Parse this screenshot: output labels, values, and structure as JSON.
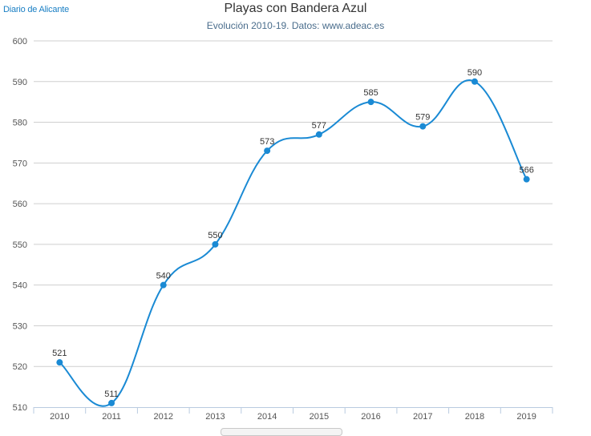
{
  "brand": "Diario de Alicante",
  "chart_data": {
    "type": "line",
    "title": "Playas con Bandera Azul",
    "subtitle": "Evolución 2010-19. Datos: www.adeac.es",
    "xlabel": "",
    "ylabel": "",
    "categories": [
      "2010",
      "2011",
      "2012",
      "2013",
      "2014",
      "2015",
      "2016",
      "2017",
      "2018",
      "2019"
    ],
    "values": [
      521,
      511,
      540,
      550,
      573,
      577,
      585,
      579,
      590,
      566
    ],
    "ylim": [
      510,
      600
    ],
    "yticks": [
      510,
      520,
      530,
      540,
      550,
      560,
      570,
      580,
      590,
      600
    ],
    "grid": true,
    "smooth": true,
    "data_labels": true,
    "line_color": "#1a8ad4"
  }
}
